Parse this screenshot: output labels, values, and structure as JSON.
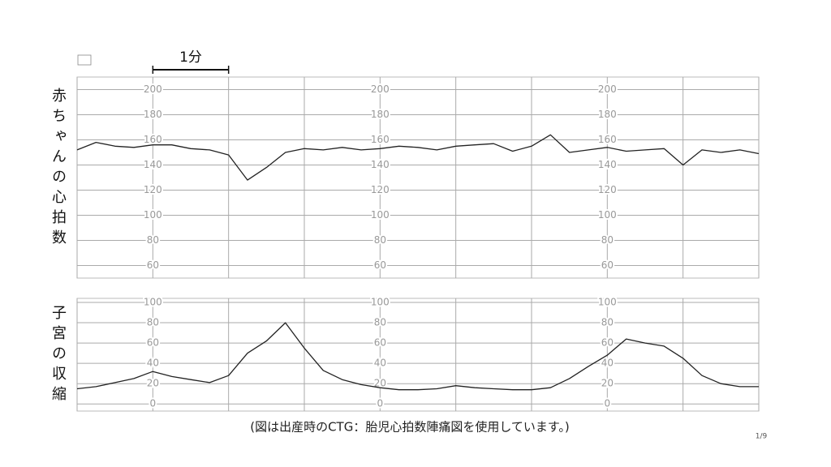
{
  "chart_data": [
    {
      "type": "line",
      "y_label": "赤ちゃんの心拍数",
      "color": "#222",
      "grid": true,
      "xlim": [
        0,
        9
      ],
      "xticks": [
        0,
        1,
        2,
        3,
        4,
        5,
        6,
        7,
        8,
        9
      ],
      "ylim": [
        50,
        210
      ],
      "yticks": [
        60,
        80,
        100,
        120,
        140,
        160,
        180,
        200
      ],
      "x": [
        0,
        0.25,
        0.5,
        0.75,
        1,
        1.25,
        1.5,
        1.75,
        2,
        2.25,
        2.5,
        2.75,
        3,
        3.25,
        3.5,
        3.75,
        4,
        4.25,
        4.5,
        4.75,
        5,
        5.25,
        5.5,
        5.75,
        6,
        6.25,
        6.5,
        6.75,
        7,
        7.25,
        7.5,
        7.75,
        8,
        8.25,
        8.5,
        8.75,
        9
      ],
      "values": [
        152,
        158,
        155,
        154,
        156,
        156,
        153,
        152,
        148,
        128,
        138,
        150,
        153,
        152,
        154,
        152,
        153,
        155,
        154,
        152,
        155,
        156,
        157,
        151,
        155,
        164,
        150,
        152,
        154,
        151,
        152,
        153,
        140,
        152,
        150,
        152,
        149
      ]
    },
    {
      "type": "line",
      "y_label": "子宮の収縮",
      "color": "#222",
      "grid": true,
      "xlim": [
        0,
        9
      ],
      "xticks": [
        0,
        1,
        2,
        3,
        4,
        5,
        6,
        7,
        8,
        9
      ],
      "ylim": [
        -7,
        104
      ],
      "yticks": [
        0,
        20,
        40,
        60,
        80,
        100
      ],
      "x": [
        0,
        0.25,
        0.5,
        0.75,
        1,
        1.25,
        1.5,
        1.75,
        2,
        2.25,
        2.5,
        2.75,
        3,
        3.25,
        3.5,
        3.75,
        4,
        4.25,
        4.5,
        4.75,
        5,
        5.25,
        5.5,
        5.75,
        6,
        6.25,
        6.5,
        6.75,
        7,
        7.25,
        7.5,
        7.75,
        8,
        8.25,
        8.5,
        8.75,
        9
      ],
      "values": [
        15,
        17,
        21,
        25,
        32,
        27,
        24,
        21,
        28,
        50,
        62,
        80,
        55,
        33,
        24,
        19,
        16,
        14,
        14,
        15,
        18,
        16,
        15,
        14,
        14,
        16,
        25,
        37,
        48,
        64,
        60,
        57,
        45,
        28,
        20,
        17,
        17
      ]
    }
  ],
  "scale_label": "1分",
  "caption": "(図は出産時のCTG：胎児心拍数陣痛図を使用しています。)",
  "page_number": "1/9"
}
